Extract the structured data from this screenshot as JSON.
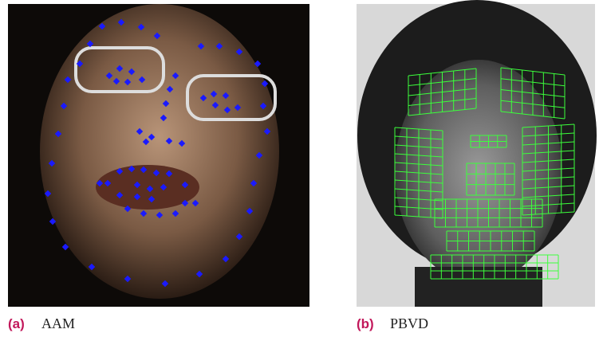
{
  "figure": {
    "panels": [
      {
        "label": "(a)",
        "caption": "AAM"
      },
      {
        "label": "(b)",
        "caption": "PBVD"
      }
    ]
  }
}
